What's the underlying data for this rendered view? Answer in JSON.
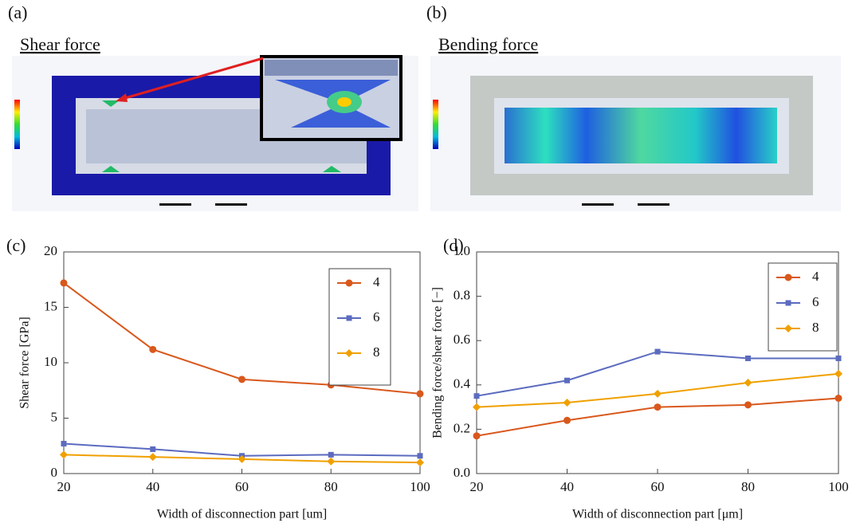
{
  "panels": [
    {
      "label": "(a)",
      "title": "Shear force"
    },
    {
      "label": "(b)",
      "title": "Bending force"
    }
  ],
  "chart_data": [
    {
      "type": "line",
      "panel_label": "(c)",
      "xlabel": "Width of disconnection part [um]",
      "ylabel": "Shear force [GPa]",
      "x": [
        20,
        40,
        60,
        80,
        100
      ],
      "xlim": [
        20,
        100
      ],
      "xticks": [
        20,
        40,
        60,
        80,
        100
      ],
      "ylim": [
        0,
        20
      ],
      "yticks": [
        0,
        5,
        10,
        15,
        20
      ],
      "grid": false,
      "legend": "upper right",
      "series": [
        {
          "name": "4",
          "color": "#d9581c",
          "marker": "circle",
          "values": [
            17.2,
            11.2,
            8.5,
            8.0,
            7.2
          ]
        },
        {
          "name": "6",
          "color": "#5b6bbf",
          "marker": "square",
          "values": [
            2.7,
            2.2,
            1.6,
            1.7,
            1.6
          ]
        },
        {
          "name": "8",
          "color": "#f0a000",
          "marker": "diamond",
          "values": [
            1.7,
            1.5,
            1.3,
            1.1,
            1.0
          ]
        }
      ]
    },
    {
      "type": "line",
      "panel_label": "(d)",
      "xlabel": "Width of disconnection part [μm]",
      "ylabel": "Bending force/shear force [−]",
      "x": [
        20,
        40,
        60,
        80,
        100
      ],
      "xlim": [
        20,
        100
      ],
      "xticks": [
        20,
        40,
        60,
        80,
        100
      ],
      "ylim": [
        0,
        1
      ],
      "yticks": [
        {
          "value": 0,
          "label": "0.0"
        },
        0.2,
        0.4,
        0.6,
        0.8,
        {
          "value": 1,
          "label": "1.0"
        }
      ],
      "grid": false,
      "legend": "upper right",
      "series": [
        {
          "name": "4",
          "color": "#d9581c",
          "marker": "circle",
          "values": [
            0.17,
            0.24,
            0.3,
            0.31,
            0.34
          ]
        },
        {
          "name": "6",
          "color": "#5b6bbf",
          "marker": "square",
          "values": [
            0.35,
            0.42,
            0.55,
            0.52,
            0.52
          ]
        },
        {
          "name": "8",
          "color": "#f0a000",
          "marker": "diamond",
          "values": [
            0.3,
            0.32,
            0.36,
            0.41,
            0.45
          ]
        }
      ]
    }
  ]
}
